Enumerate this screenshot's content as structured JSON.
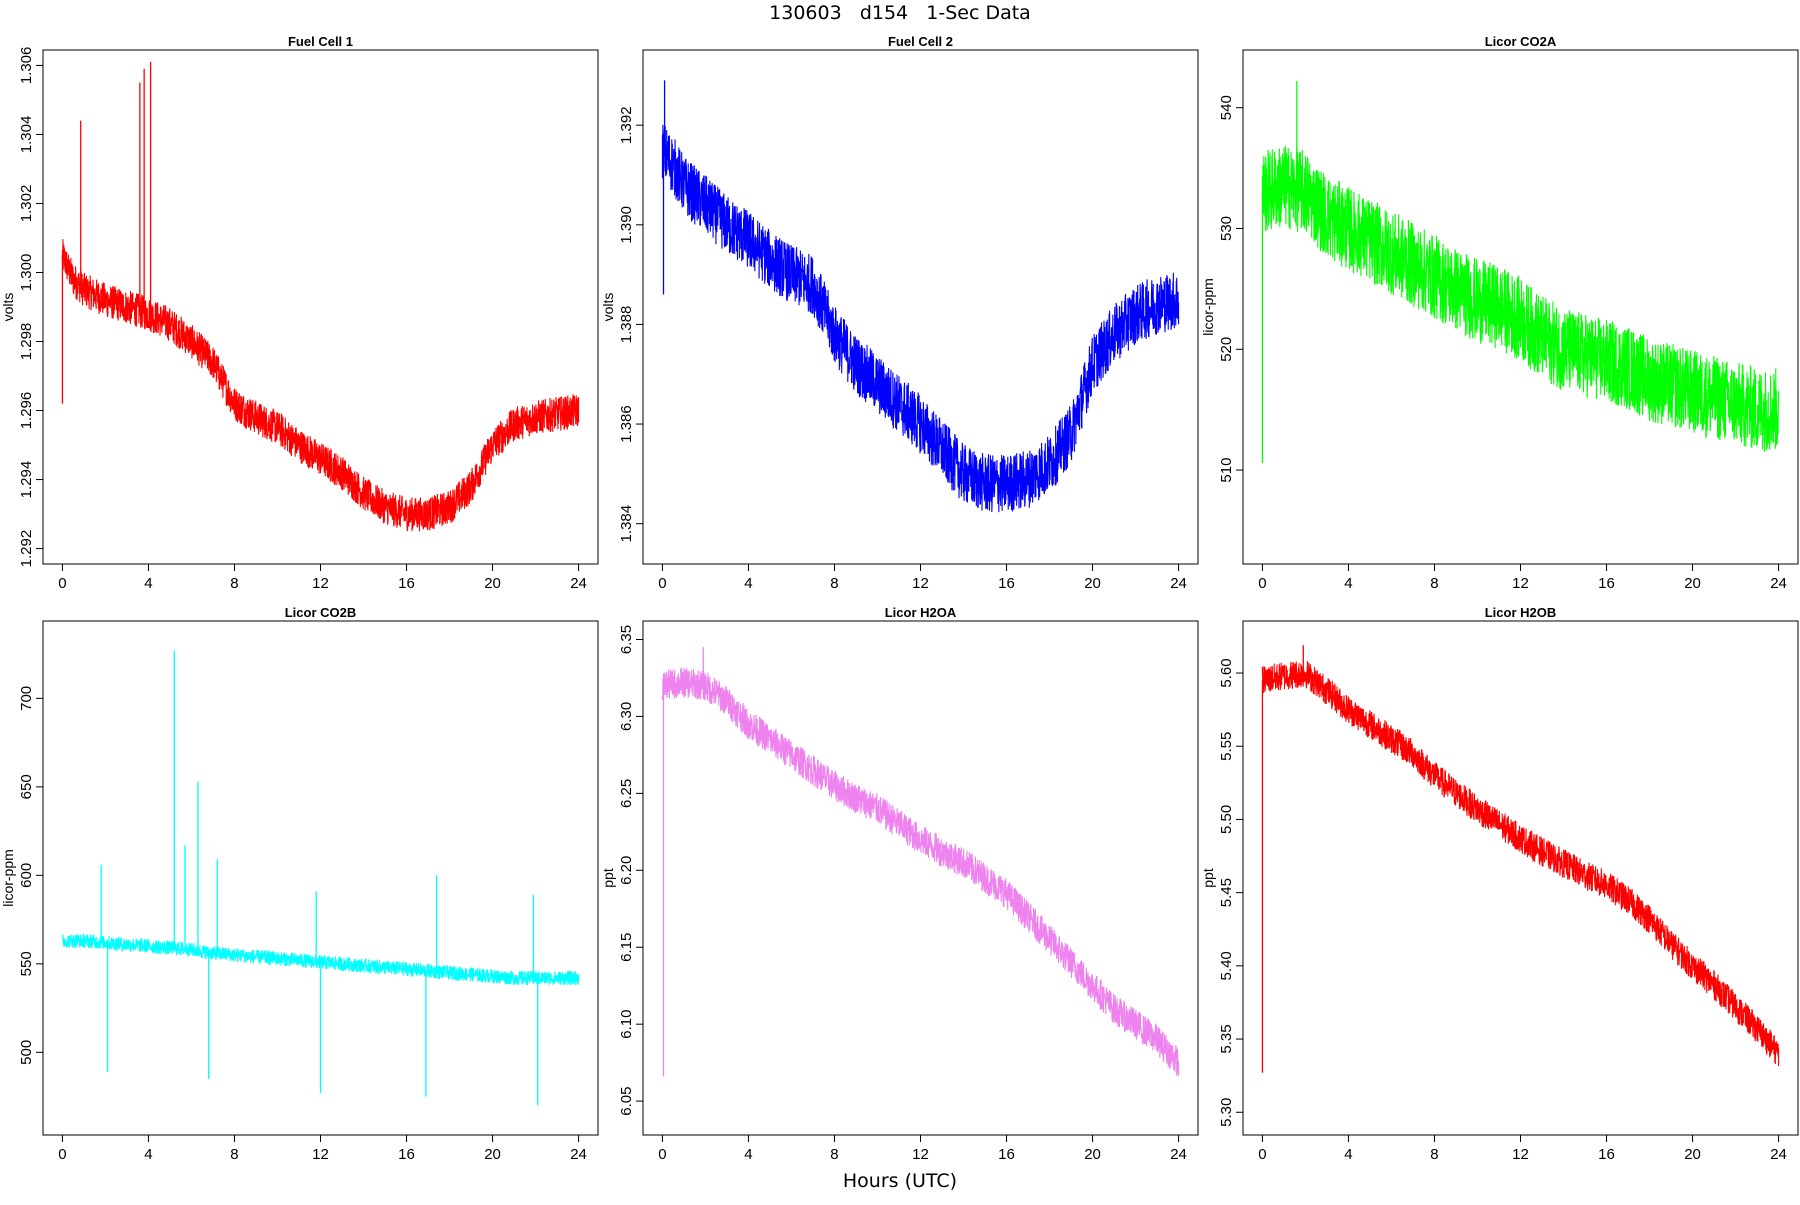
{
  "figure": {
    "title": "130603   d154   1-Sec Data",
    "xlabel": "Hours (UTC)"
  },
  "chart_data": [
    {
      "type": "line",
      "title": "Fuel Cell 1",
      "ylabel": "volts",
      "color": "#ff0000",
      "xlim": [
        0,
        24
      ],
      "ylim": [
        1.292,
        1.306
      ],
      "xticks": [
        "0",
        "4",
        "8",
        "12",
        "16",
        "20",
        "24"
      ],
      "yticks": [
        "1.292",
        "1.294",
        "1.296",
        "1.298",
        "1.300",
        "1.302",
        "1.304",
        "1.306"
      ],
      "x": [
        0,
        0.5,
        1,
        2,
        3,
        4,
        5,
        6,
        7,
        8,
        9,
        10,
        11,
        12,
        13,
        14,
        15,
        16,
        17,
        18,
        19,
        20,
        21,
        22,
        23,
        24
      ],
      "y": [
        1.3005,
        1.2998,
        1.2995,
        1.2992,
        1.299,
        1.2988,
        1.2985,
        1.298,
        1.2974,
        1.2962,
        1.2958,
        1.2955,
        1.295,
        1.2946,
        1.2942,
        1.2936,
        1.2932,
        1.293,
        1.293,
        1.2932,
        1.2938,
        1.295,
        1.2956,
        1.2958,
        1.2959,
        1.296
      ],
      "noise": 0.0005,
      "spikes": [
        {
          "x": 0.0,
          "y": 1.2962
        },
        {
          "x": 0.85,
          "y": 1.3044
        },
        {
          "x": 3.6,
          "y": 1.3055
        },
        {
          "x": 3.8,
          "y": 1.3059
        },
        {
          "x": 4.1,
          "y": 1.3061
        }
      ]
    },
    {
      "type": "line",
      "title": "Fuel Cell 2",
      "ylabel": "volts",
      "color": "#0000ff",
      "xlim": [
        0,
        24
      ],
      "ylim": [
        1.3835,
        1.3932
      ],
      "xticks": [
        "0",
        "4",
        "8",
        "12",
        "16",
        "20",
        "24"
      ],
      "yticks": [
        "1.384",
        "1.386",
        "1.388",
        "1.390",
        "1.392"
      ],
      "x": [
        0,
        0.5,
        1,
        2,
        3,
        4,
        5,
        6,
        7,
        8,
        9,
        10,
        11,
        12,
        13,
        14,
        15,
        16,
        17,
        18,
        19,
        20,
        21,
        22,
        23,
        24
      ],
      "y": [
        1.3915,
        1.3912,
        1.3908,
        1.3904,
        1.39,
        1.3897,
        1.3893,
        1.389,
        1.3888,
        1.3878,
        1.3872,
        1.3868,
        1.3864,
        1.386,
        1.3855,
        1.385,
        1.3848,
        1.3848,
        1.3849,
        1.3852,
        1.3858,
        1.3872,
        1.3878,
        1.3882,
        1.3884,
        1.3885
      ],
      "noise": 0.0006,
      "spikes": [
        {
          "x": 0.05,
          "y": 1.3886
        },
        {
          "x": 0.1,
          "y": 1.3929
        }
      ]
    },
    {
      "type": "line",
      "title": "Licor CO2A",
      "ylabel": "licor-ppm",
      "color": "#00ff00",
      "xlim": [
        0,
        24
      ],
      "ylim": [
        503.5,
        543.5
      ],
      "xticks": [
        "0",
        "4",
        "8",
        "12",
        "16",
        "20",
        "24"
      ],
      "yticks": [
        "510",
        "520",
        "530",
        "540"
      ],
      "x": [
        0,
        1,
        2,
        3,
        4,
        5,
        6,
        7,
        8,
        9,
        10,
        11,
        12,
        13,
        14,
        15,
        16,
        17,
        18,
        19,
        20,
        21,
        22,
        23,
        24
      ],
      "y": [
        533,
        533.5,
        533,
        531,
        530,
        529,
        528,
        527,
        526,
        525,
        524,
        523.5,
        522.5,
        521,
        520,
        519.5,
        519,
        518.5,
        517.5,
        517,
        516.5,
        516,
        515.5,
        515,
        515
      ],
      "noise": 3.5,
      "spikes": [
        {
          "x": 0.0,
          "y": 510.6
        },
        {
          "x": 1.6,
          "y": 542.2
        }
      ]
    },
    {
      "type": "line",
      "title": "Licor CO2B",
      "ylabel": "licor-ppm",
      "color": "#00ffff",
      "xlim": [
        0,
        24
      ],
      "ylim": [
        462,
        735
      ],
      "xticks": [
        "0",
        "4",
        "8",
        "12",
        "16",
        "20",
        "24"
      ],
      "yticks": [
        "500",
        "550",
        "600",
        "650",
        "700"
      ],
      "x": [
        0,
        1,
        2,
        3,
        4,
        5,
        6,
        7,
        8,
        9,
        10,
        11,
        12,
        13,
        14,
        15,
        16,
        17,
        18,
        19,
        20,
        21,
        22,
        23,
        24
      ],
      "y": [
        563,
        563,
        562,
        561,
        560,
        559,
        558,
        556,
        555,
        554,
        553,
        552,
        551,
        550,
        549,
        548,
        547,
        546,
        545,
        544,
        543,
        542,
        542,
        542,
        542
      ],
      "noise": 4,
      "spikes": [
        {
          "x": 1.8,
          "y": 606
        },
        {
          "x": 2.1,
          "y": 489
        },
        {
          "x": 5.2,
          "y": 727
        },
        {
          "x": 5.7,
          "y": 617
        },
        {
          "x": 6.3,
          "y": 653
        },
        {
          "x": 6.8,
          "y": 485
        },
        {
          "x": 7.2,
          "y": 609
        },
        {
          "x": 12.0,
          "y": 477
        },
        {
          "x": 11.8,
          "y": 591
        },
        {
          "x": 16.9,
          "y": 475
        },
        {
          "x": 17.4,
          "y": 600
        },
        {
          "x": 21.9,
          "y": 589
        },
        {
          "x": 22.1,
          "y": 470
        }
      ]
    },
    {
      "type": "line",
      "title": "Licor H2OA",
      "ylabel": "ppt",
      "color": "#ee82ee",
      "xlim": [
        0,
        24
      ],
      "ylim": [
        6.038,
        6.352
      ],
      "xticks": [
        "0",
        "4",
        "8",
        "12",
        "16",
        "20",
        "24"
      ],
      "yticks": [
        "6.05",
        "6.10",
        "6.15",
        "6.20",
        "6.25",
        "6.30",
        "6.35"
      ],
      "x": [
        0,
        1,
        2,
        3,
        4,
        5,
        6,
        7,
        8,
        9,
        10,
        11,
        12,
        13,
        14,
        15,
        16,
        17,
        18,
        19,
        20,
        21,
        22,
        23,
        24
      ],
      "y": [
        6.32,
        6.322,
        6.32,
        6.31,
        6.295,
        6.285,
        6.275,
        6.265,
        6.255,
        6.247,
        6.24,
        6.23,
        6.22,
        6.212,
        6.205,
        6.195,
        6.185,
        6.17,
        6.155,
        6.14,
        6.125,
        6.11,
        6.1,
        6.09,
        6.075
      ],
      "noise": 0.01,
      "spikes": [
        {
          "x": 0.05,
          "y": 6.066
        },
        {
          "x": 1.9,
          "y": 6.345
        }
      ]
    },
    {
      "type": "line",
      "title": "Licor H2OB",
      "ylabel": "ppt",
      "color": "#ff0000",
      "xlim": [
        0,
        24
      ],
      "ylim": [
        5.295,
        5.625
      ],
      "xticks": [
        "0",
        "4",
        "8",
        "12",
        "16",
        "20",
        "24"
      ],
      "yticks": [
        "5.30",
        "5.35",
        "5.40",
        "5.45",
        "5.50",
        "5.55",
        "5.60"
      ],
      "x": [
        0,
        1,
        2,
        3,
        4,
        5,
        6,
        7,
        8,
        9,
        10,
        11,
        12,
        13,
        14,
        15,
        16,
        17,
        18,
        19,
        20,
        21,
        22,
        23,
        24
      ],
      "y": [
        5.595,
        5.598,
        5.6,
        5.588,
        5.575,
        5.565,
        5.555,
        5.545,
        5.53,
        5.518,
        5.507,
        5.497,
        5.487,
        5.478,
        5.47,
        5.462,
        5.455,
        5.445,
        5.432,
        5.415,
        5.4,
        5.387,
        5.372,
        5.357,
        5.34
      ],
      "noise": 0.01,
      "spikes": [
        {
          "x": 0.0,
          "y": 5.327
        },
        {
          "x": 1.9,
          "y": 5.619
        }
      ]
    }
  ]
}
